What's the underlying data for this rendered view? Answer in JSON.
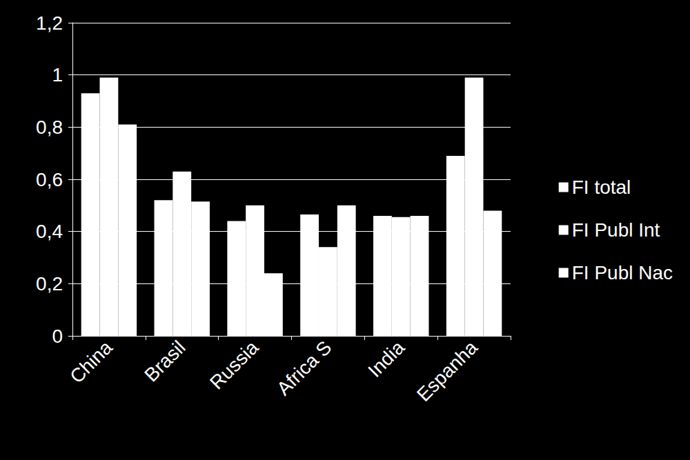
{
  "chart_data": {
    "type": "bar",
    "categories": [
      "China",
      "Brasil",
      "Russia",
      "Africa S",
      "India",
      "Espanha"
    ],
    "series": [
      {
        "name": "FI total",
        "color": "#ffffff",
        "values": [
          0.93,
          0.52,
          0.44,
          0.465,
          0.46,
          0.69
        ]
      },
      {
        "name": "FI Publ Int",
        "color": "#ffffff",
        "values": [
          0.99,
          0.63,
          0.5,
          0.34,
          0.455,
          0.99
        ]
      },
      {
        "name": "FI Publ Nac",
        "color": "#ffffff",
        "values": [
          0.81,
          0.515,
          0.24,
          0.5,
          0.46,
          0.48
        ]
      }
    ],
    "ylim": [
      0,
      1.2
    ],
    "yticks": [
      0,
      {
        "value": 0.2,
        "label": "0,2"
      },
      {
        "value": 0.4,
        "label": "0,4"
      },
      {
        "value": 0.6,
        "label": "0,6"
      },
      {
        "value": 0.8,
        "label": "0,8"
      },
      1,
      {
        "value": 1.2,
        "label": "1,2"
      }
    ],
    "grid": true,
    "legend": "right"
  }
}
